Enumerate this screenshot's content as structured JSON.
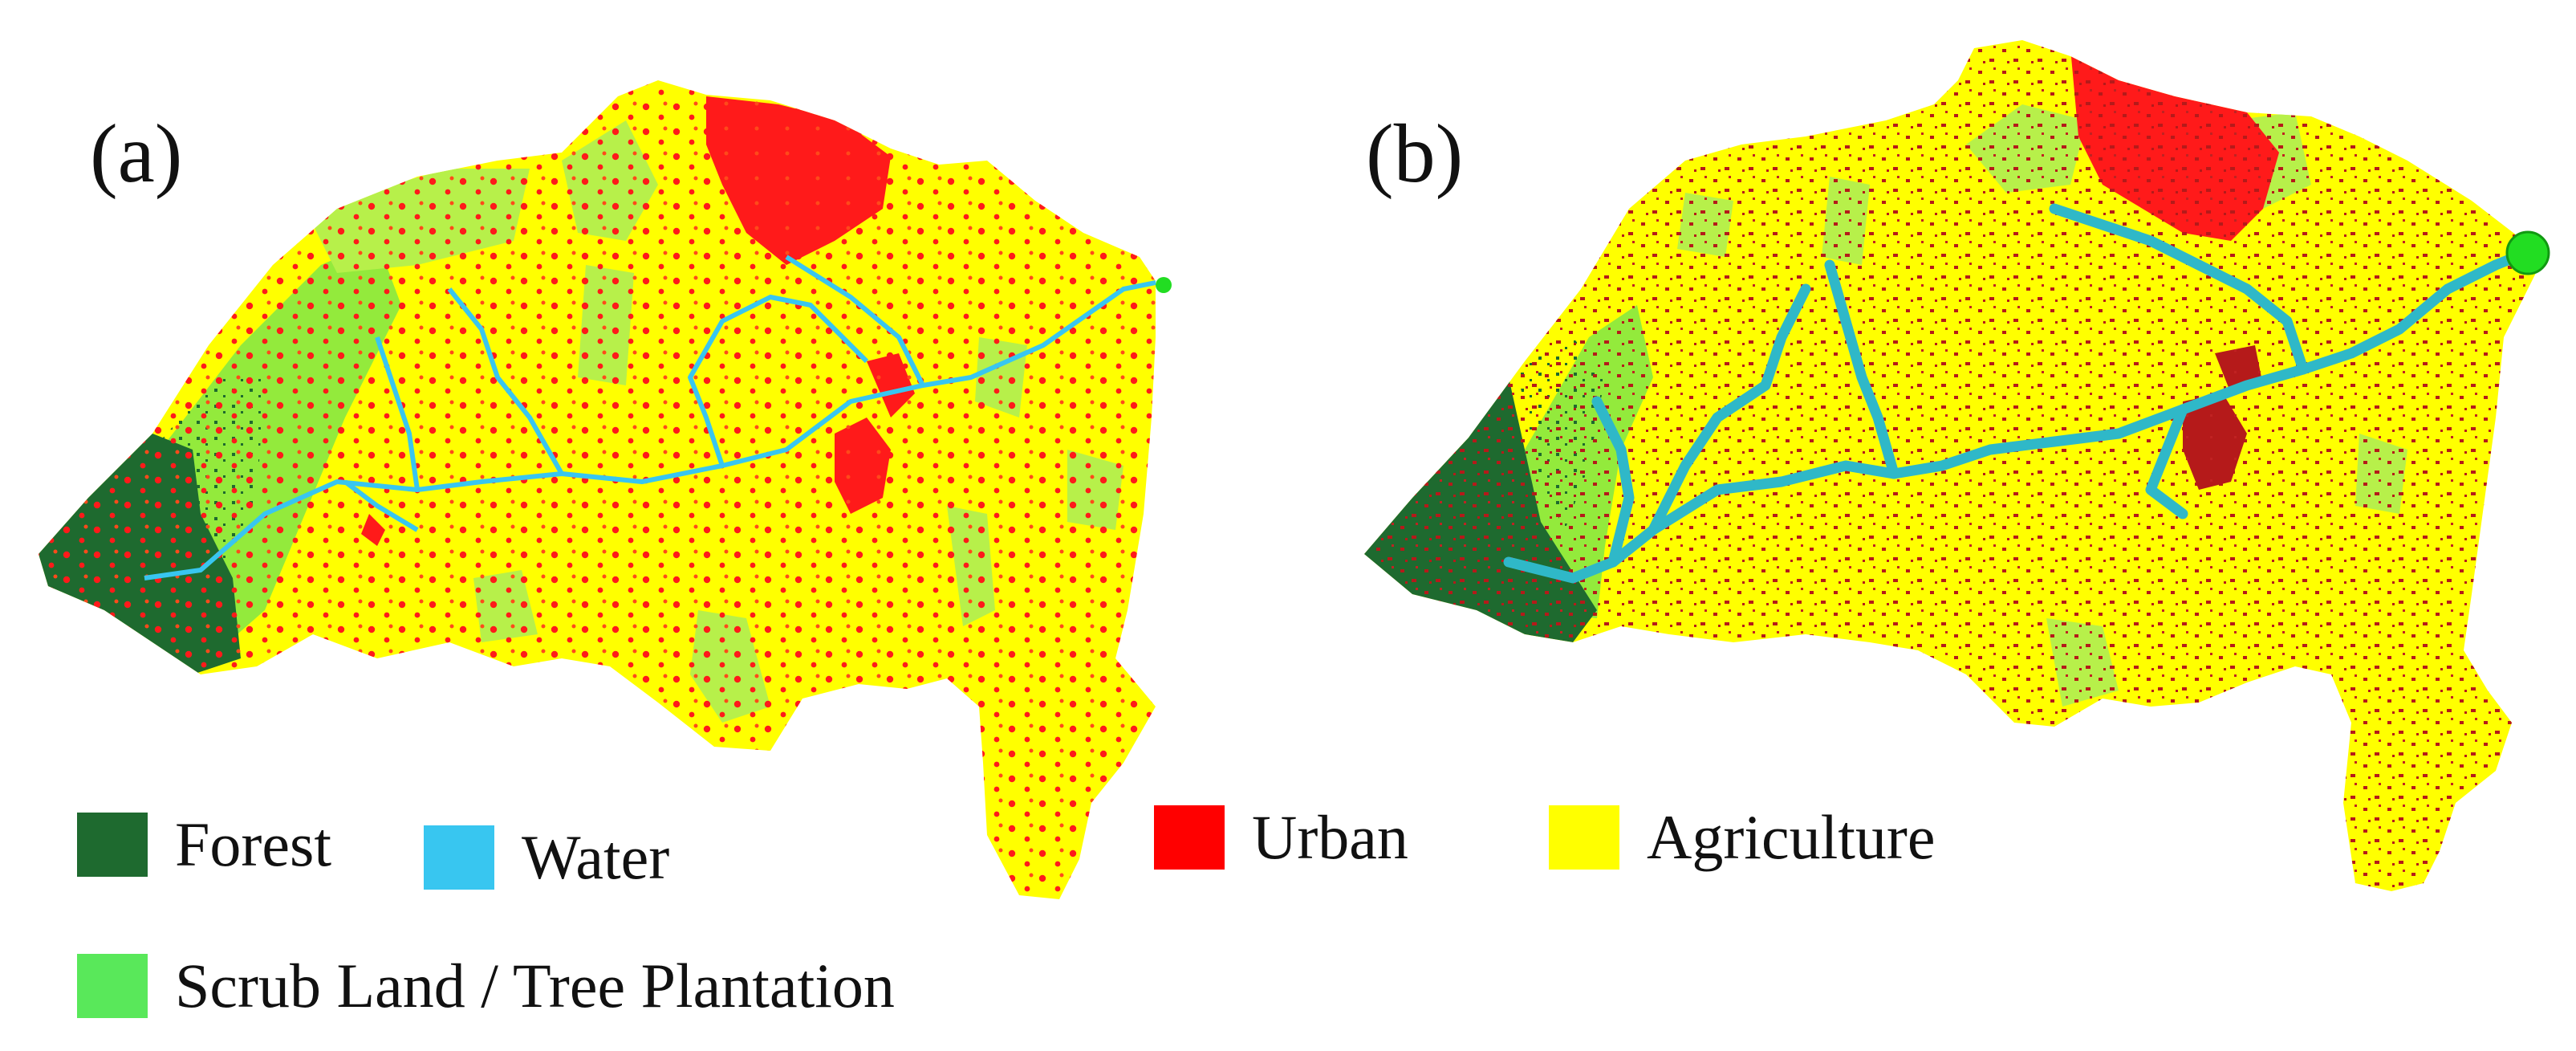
{
  "panels": [
    {
      "label": "(a)"
    },
    {
      "label": "(b)"
    }
  ],
  "legend": [
    {
      "label": "Forest",
      "color": "#1e6a2f"
    },
    {
      "label": "Water",
      "color": "#38c6f0"
    },
    {
      "label": "Urban",
      "color": "#ff0000"
    },
    {
      "label": "Agriculture",
      "color": "#ffff00"
    },
    {
      "label": "Scrub Land / Tree Plantation",
      "color": "#59e85a"
    }
  ],
  "map_colors": {
    "agriculture": "#ffff00",
    "forest": "#1e6a2f",
    "scrub": "#93ea3c",
    "water": "#38c6f0",
    "urban_a": "#ff1a1a",
    "urban_b": "#b51a1a",
    "outlet": "#22dd22"
  }
}
